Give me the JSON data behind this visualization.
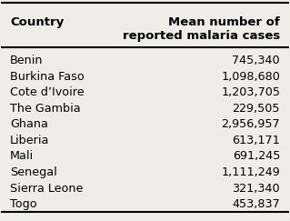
{
  "countries": [
    "Benin",
    "Burkina Faso",
    "Cote d’Ivoire",
    "The Gambia",
    "Ghana",
    "Liberia",
    "Mali",
    "Senegal",
    "Sierra Leone",
    "Togo"
  ],
  "values": [
    "745,340",
    "1,098,680",
    "1,203,705",
    "229,505",
    "2,956,957",
    "613,171",
    "691,245",
    "1,111,249",
    "321,340",
    "453,837"
  ],
  "col_header_left": "Country",
  "col_header_right": "Mean number of\nreported malaria cases",
  "background_color": "#f0ede8",
  "header_fontsize": 9.5,
  "row_fontsize": 9.2
}
